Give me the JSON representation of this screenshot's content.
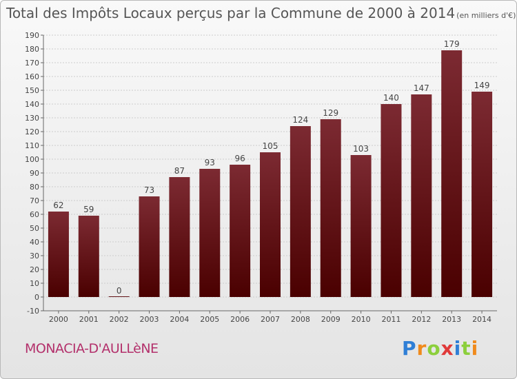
{
  "header": {
    "title": "Total des Impôts Locaux perçus par la Commune de 2000 à 2014",
    "unit": "(en milliers d'€)"
  },
  "footer": {
    "commune": "MONACIA-D'AULLèNE",
    "brand": "Proxiti",
    "brand_colors": [
      "#2f7fd6",
      "#f08a1c",
      "#8ccf3c",
      "#e03a3a",
      "#2f7fd6",
      "#8ccf3c",
      "#f08a1c"
    ]
  },
  "colors": {
    "bar_top": "#7c2a32",
    "bar_bottom": "#4a0000",
    "grid": "#cccccc",
    "text": "#444444"
  },
  "chart_data": {
    "type": "bar",
    "title": "Total des Impôts Locaux perçus par la Commune de 2000 à 2014",
    "categories": [
      "2000",
      "2001",
      "2002",
      "2003",
      "2004",
      "2005",
      "2006",
      "2007",
      "2008",
      "2009",
      "2010",
      "2011",
      "2012",
      "2013",
      "2014"
    ],
    "values": [
      62,
      59,
      0,
      73,
      87,
      93,
      96,
      105,
      124,
      129,
      103,
      140,
      147,
      179,
      149
    ],
    "ylim": [
      -10,
      190
    ],
    "yticks": [
      -10,
      0,
      10,
      20,
      30,
      40,
      50,
      60,
      70,
      80,
      90,
      100,
      110,
      120,
      130,
      140,
      150,
      160,
      170,
      180,
      190
    ],
    "grid": true,
    "xlabel": "",
    "ylabel": ""
  }
}
